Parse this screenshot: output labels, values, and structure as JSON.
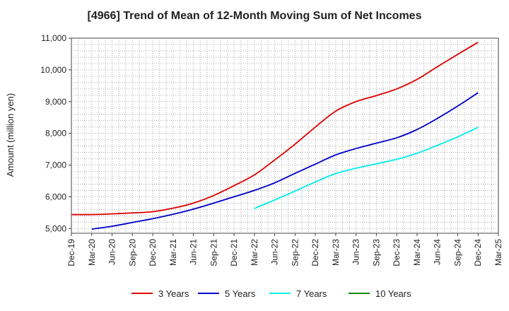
{
  "chart_data": {
    "type": "line",
    "title": "[4966]  Trend of Mean of 12-Month Moving Sum of Net Incomes",
    "xlabel": "",
    "ylabel": "Amount (million yen)",
    "ylim": [
      4850,
      11000
    ],
    "yticks": [
      5000,
      6000,
      7000,
      8000,
      9000,
      10000,
      11000
    ],
    "ytick_labels": [
      "5,000",
      "6,000",
      "7,000",
      "8,000",
      "9,000",
      "10,000",
      "11,000"
    ],
    "x_start": "Dec-19",
    "x_end": "Mar-25",
    "xtick_labels": [
      "Dec-19",
      "Mar-20",
      "Jun-20",
      "Sep-20",
      "Dec-20",
      "Mar-21",
      "Jun-21",
      "Sep-21",
      "Dec-21",
      "Mar-22",
      "Jun-22",
      "Sep-22",
      "Dec-22",
      "Mar-23",
      "Jun-23",
      "Sep-23",
      "Dec-23",
      "Mar-24",
      "Jun-24",
      "Sep-24",
      "Dec-24",
      "Mar-25"
    ],
    "grid": true,
    "legend_position": "bottom",
    "series": [
      {
        "name": "3 Years",
        "color": "#dd0000",
        "x": [
          "Dec-19",
          "Mar-20",
          "Jun-20",
          "Sep-20",
          "Dec-20",
          "Mar-21",
          "Jun-21",
          "Sep-21",
          "Dec-21",
          "Mar-22",
          "Jun-22",
          "Sep-22",
          "Dec-22",
          "Mar-23",
          "Jun-23",
          "Sep-23",
          "Dec-23",
          "Mar-24",
          "Jun-24",
          "Sep-24",
          "Dec-24"
        ],
        "values": [
          5440,
          5440,
          5460,
          5490,
          5530,
          5640,
          5800,
          6040,
          6350,
          6690,
          7160,
          7660,
          8200,
          8700,
          9000,
          9190,
          9400,
          9700,
          10100,
          10490,
          10870
        ]
      },
      {
        "name": "5 Years",
        "color": "#0000cc",
        "x": [
          "Mar-20",
          "Jun-20",
          "Sep-20",
          "Dec-20",
          "Mar-21",
          "Jun-21",
          "Sep-21",
          "Dec-21",
          "Mar-22",
          "Jun-22",
          "Sep-22",
          "Dec-22",
          "Mar-23",
          "Jun-23",
          "Sep-23",
          "Dec-23",
          "Mar-24",
          "Jun-24",
          "Sep-24",
          "Dec-24"
        ],
        "values": [
          4980,
          5070,
          5190,
          5310,
          5450,
          5610,
          5800,
          6000,
          6200,
          6440,
          6740,
          7030,
          7320,
          7520,
          7690,
          7860,
          8120,
          8470,
          8860,
          9280
        ]
      },
      {
        "name": "7 Years",
        "color": "#00eeee",
        "x": [
          "Mar-22",
          "Jun-22",
          "Sep-22",
          "Dec-22",
          "Mar-23",
          "Jun-23",
          "Sep-23",
          "Dec-23",
          "Mar-24",
          "Jun-24",
          "Sep-24",
          "Dec-24"
        ],
        "values": [
          5630,
          5900,
          6180,
          6470,
          6730,
          6900,
          7040,
          7180,
          7370,
          7620,
          7890,
          8190
        ]
      },
      {
        "name": "10 Years",
        "color": "#008800",
        "x": [],
        "values": []
      }
    ]
  }
}
